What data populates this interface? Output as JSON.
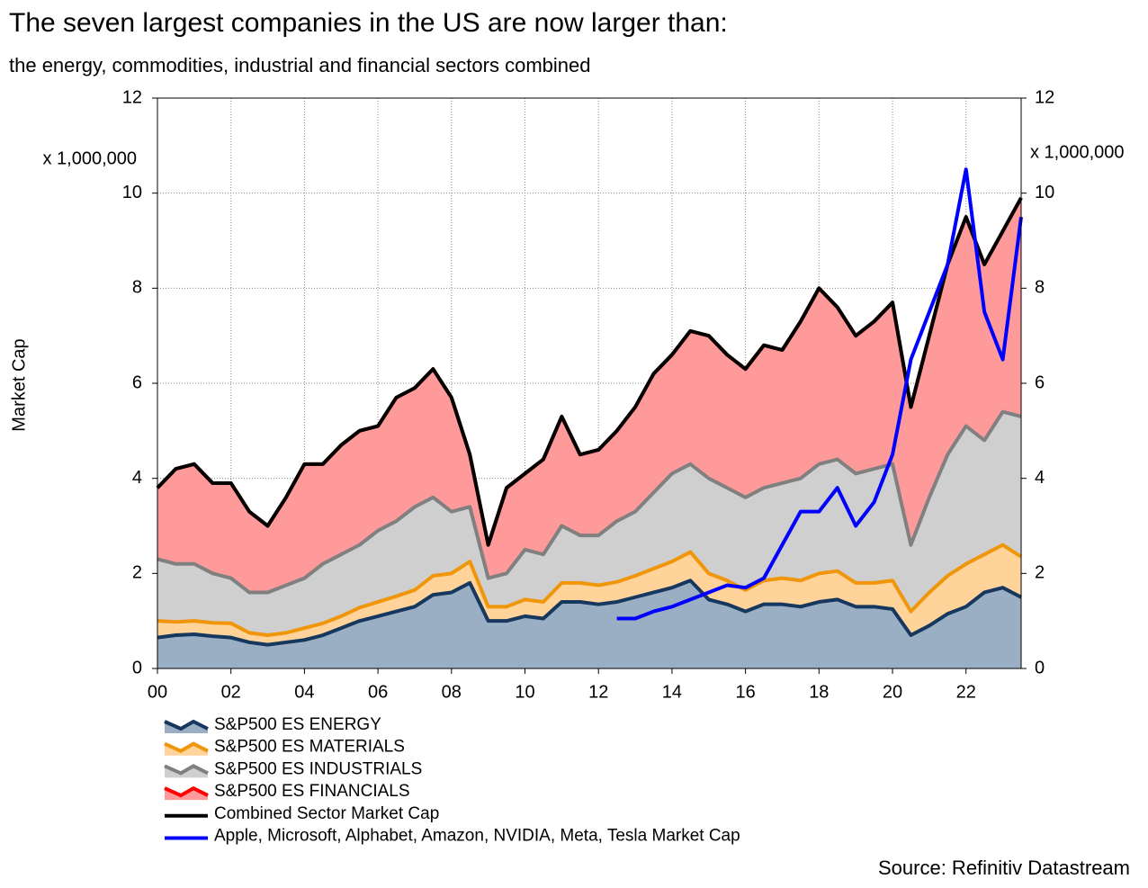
{
  "chart_data": {
    "type": "stacked_area",
    "title": "The seven largest companies in the US are now larger than:",
    "subtitle": "the energy, commodities, industrial and financial sectors combined",
    "y_label": "Market Cap",
    "y_unit_label": "x 1,000,000",
    "y2_unit_label": "x 1,000,000",
    "source": "Source: Refinitiv Datastream",
    "x": [
      2000,
      2000.5,
      2001,
      2001.5,
      2002,
      2002.5,
      2003,
      2003.5,
      2004,
      2004.5,
      2005,
      2005.5,
      2006,
      2006.5,
      2007,
      2007.5,
      2008,
      2008.5,
      2009,
      2009.5,
      2010,
      2010.5,
      2011,
      2011.5,
      2012,
      2012.5,
      2013,
      2013.5,
      2014,
      2014.5,
      2015,
      2015.5,
      2016,
      2016.5,
      2017,
      2017.5,
      2018,
      2018.5,
      2019,
      2019.5,
      2020,
      2020.5,
      2021,
      2021.5,
      2022,
      2022.5,
      2023,
      2023.5
    ],
    "xlim": [
      2000,
      2023.5
    ],
    "xticks": [
      {
        "value": 2000,
        "label": "00"
      },
      {
        "value": 2002,
        "label": "02"
      },
      {
        "value": 2004,
        "label": "04"
      },
      {
        "value": 2006,
        "label": "06"
      },
      {
        "value": 2008,
        "label": "08"
      },
      {
        "value": 2010,
        "label": "10"
      },
      {
        "value": 2012,
        "label": "12"
      },
      {
        "value": 2014,
        "label": "14"
      },
      {
        "value": 2016,
        "label": "16"
      },
      {
        "value": 2018,
        "label": "18"
      },
      {
        "value": 2020,
        "label": "20"
      },
      {
        "value": 2022,
        "label": "22"
      }
    ],
    "ylim": [
      0,
      12
    ],
    "yticks": [
      0,
      2,
      4,
      6,
      8,
      10,
      12
    ],
    "y2lim": [
      0,
      12
    ],
    "y2ticks": [
      0,
      2,
      4,
      6,
      8,
      10,
      12
    ],
    "grid": true,
    "series": [
      {
        "name": "S&P500 ES ENERGY",
        "kind": "area",
        "color": "#16375e",
        "fill": "#9aafc4",
        "values": [
          0.65,
          0.7,
          0.72,
          0.68,
          0.65,
          0.55,
          0.5,
          0.55,
          0.6,
          0.7,
          0.85,
          1.0,
          1.1,
          1.2,
          1.3,
          1.55,
          1.6,
          1.8,
          1.0,
          1.0,
          1.1,
          1.05,
          1.4,
          1.4,
          1.35,
          1.4,
          1.5,
          1.6,
          1.7,
          1.85,
          1.45,
          1.35,
          1.2,
          1.35,
          1.35,
          1.3,
          1.4,
          1.45,
          1.3,
          1.3,
          1.25,
          0.7,
          0.9,
          1.15,
          1.3,
          1.6,
          1.7,
          1.5
        ]
      },
      {
        "name": "S&P500 ES MATERIALS",
        "kind": "area",
        "color": "#f0960a",
        "fill": "#ffd39a",
        "values": [
          0.35,
          0.28,
          0.28,
          0.28,
          0.3,
          0.2,
          0.2,
          0.2,
          0.25,
          0.25,
          0.25,
          0.28,
          0.3,
          0.32,
          0.35,
          0.4,
          0.4,
          0.45,
          0.3,
          0.3,
          0.35,
          0.35,
          0.4,
          0.4,
          0.4,
          0.42,
          0.45,
          0.5,
          0.55,
          0.6,
          0.55,
          0.5,
          0.45,
          0.5,
          0.55,
          0.55,
          0.6,
          0.6,
          0.5,
          0.5,
          0.6,
          0.5,
          0.7,
          0.8,
          0.9,
          0.8,
          0.9,
          0.85
        ]
      },
      {
        "name": "S&P500 ES INDUSTRIALS",
        "kind": "area",
        "color": "#808080",
        "fill": "#cfcfcf",
        "values": [
          1.3,
          1.22,
          1.2,
          1.04,
          0.95,
          0.85,
          0.9,
          1.0,
          1.05,
          1.25,
          1.3,
          1.32,
          1.5,
          1.58,
          1.75,
          1.65,
          1.3,
          1.15,
          0.6,
          0.7,
          1.05,
          1.0,
          1.2,
          1.0,
          1.05,
          1.28,
          1.35,
          1.6,
          1.85,
          1.85,
          2.0,
          1.95,
          1.95,
          1.95,
          2.0,
          2.15,
          2.3,
          2.35,
          2.3,
          2.4,
          2.45,
          1.4,
          2.0,
          2.55,
          2.9,
          2.4,
          2.8,
          2.95
        ]
      },
      {
        "name": "S&P500 ES FINANCIALS",
        "kind": "area",
        "color": "#ff0000",
        "fill": "#ff9a9a",
        "values": [
          1.5,
          2.0,
          2.1,
          1.9,
          2.0,
          1.7,
          1.4,
          1.85,
          2.4,
          2.1,
          2.3,
          2.4,
          2.2,
          2.6,
          2.5,
          2.7,
          2.4,
          1.1,
          0.7,
          1.8,
          1.6,
          2.0,
          2.3,
          1.7,
          1.8,
          1.9,
          2.2,
          2.5,
          2.5,
          2.8,
          3.0,
          2.8,
          2.7,
          3.0,
          2.8,
          3.3,
          3.7,
          3.2,
          2.9,
          3.1,
          3.4,
          2.9,
          3.4,
          4.0,
          4.4,
          3.7,
          3.8,
          4.6
        ]
      },
      {
        "name": "Combined Sector Market Cap",
        "kind": "line",
        "color": "#000000",
        "values": [
          3.8,
          4.2,
          4.3,
          3.9,
          3.9,
          3.3,
          3.0,
          3.6,
          4.3,
          4.3,
          4.7,
          5.0,
          5.1,
          5.7,
          5.9,
          6.3,
          5.7,
          4.5,
          2.6,
          3.8,
          4.1,
          4.4,
          5.3,
          4.5,
          4.6,
          5.0,
          5.5,
          6.2,
          6.6,
          7.1,
          7.0,
          6.6,
          6.3,
          6.8,
          6.7,
          7.3,
          8.0,
          7.6,
          7.0,
          7.3,
          7.7,
          5.5,
          7.0,
          8.5,
          9.5,
          8.5,
          9.2,
          9.9
        ]
      },
      {
        "name": "Apple, Microsoft, Alphabet, Amazon, NVIDIA, Meta, Tesla Market Cap",
        "kind": "line",
        "color": "#0000ff",
        "axis": "y2",
        "values": [
          null,
          null,
          null,
          null,
          null,
          null,
          null,
          null,
          null,
          null,
          null,
          null,
          null,
          null,
          null,
          null,
          null,
          null,
          null,
          null,
          null,
          null,
          null,
          null,
          null,
          1.05,
          1.05,
          1.2,
          1.3,
          1.45,
          1.6,
          1.75,
          1.7,
          1.9,
          2.6,
          3.3,
          3.3,
          3.8,
          3.0,
          3.5,
          4.5,
          6.5,
          7.5,
          8.5,
          10.5,
          7.5,
          6.5,
          9.5
        ]
      }
    ]
  }
}
